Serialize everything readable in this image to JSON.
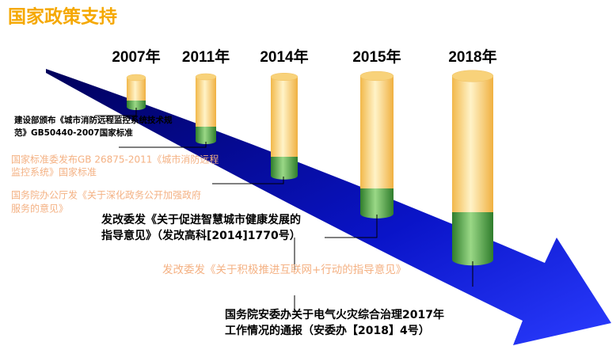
{
  "header": {
    "title": "国家政策支持"
  },
  "years": [
    "2007年",
    "2011年",
    "2014年",
    "2015年",
    "2018年"
  ],
  "policies": [
    {
      "lines": [
        "建设部颁布《城市消防远程监控系统技术规",
        "范》GB50440-2007国家标准"
      ]
    },
    {
      "lines": [
        "国家标准委发布GB 26875-2011《城市消防远程",
        "监控系统》国家标准"
      ]
    },
    {
      "lines": [
        "国务院办公厅发《关于深化政务公开加强政府",
        "服务的意见》"
      ]
    },
    {
      "lines": [
        "发改委发《关于促进智慧城市健康发展的",
        "指导意见》（发改高科[2014]1770号）"
      ]
    },
    {
      "lines": [
        "发改委发《关于积极推进互联网+行动的指导意见》"
      ]
    },
    {
      "lines": [
        "国务院安委办关于电气火灾综合治理2017年",
        "工作情况的通报（安委办【2018】4号）"
      ]
    }
  ]
}
